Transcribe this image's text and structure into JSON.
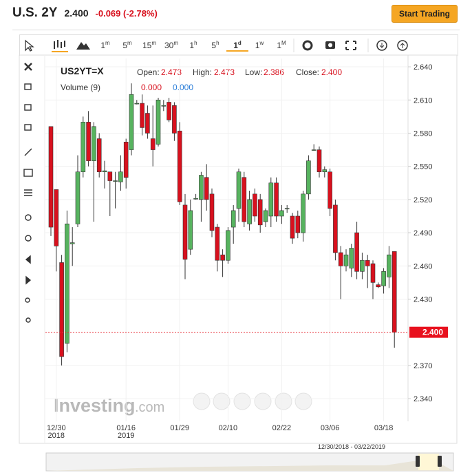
{
  "header": {
    "title": "U.S. 2Y",
    "price": "2.400",
    "change": "-0.069 (-2.78%)",
    "button": "Start Trading"
  },
  "toolbar": {
    "intervals": [
      {
        "n": "1",
        "unit": "m"
      },
      {
        "n": "5",
        "unit": "m"
      },
      {
        "n": "15",
        "unit": "m"
      },
      {
        "n": "30",
        "unit": "m"
      },
      {
        "n": "1",
        "unit": "h"
      },
      {
        "n": "5",
        "unit": "h"
      },
      {
        "n": "1",
        "unit": "d"
      },
      {
        "n": "1",
        "unit": "w"
      },
      {
        "n": "1",
        "unit": "M"
      }
    ],
    "active": 6
  },
  "legend": {
    "symbol": "US2YT=X",
    "open_label": "Open:",
    "open": "2.473",
    "high_label": "High:",
    "high": "2.473",
    "low_label": "Low:",
    "low": "2.386",
    "close_label": "Close:",
    "close": "2.400",
    "volume_label": "Volume (9)",
    "volume_a": "0.000",
    "volume_b": "0.000"
  },
  "watermark": {
    "brand": "Investing",
    "suffix": ".com"
  },
  "navigator": {
    "range": "12/30/2018 - 03/22/2019"
  },
  "chart_data": {
    "type": "candlestick",
    "categories": [
      null,
      "12/30",
      null,
      null,
      null,
      null,
      null,
      null,
      null,
      null,
      null,
      null,
      null,
      null,
      "01/16",
      null,
      null,
      null,
      null,
      null,
      null,
      null,
      null,
      null,
      "01/29",
      null,
      null,
      null,
      null,
      null,
      null,
      null,
      null,
      "02/10",
      null,
      null,
      null,
      null,
      null,
      null,
      null,
      null,
      null,
      "02/22",
      null,
      null,
      null,
      null,
      null,
      null,
      null,
      null,
      "03/06",
      null,
      null,
      null,
      null,
      null,
      null,
      null,
      null,
      null,
      "03/18",
      null,
      null
    ],
    "category_years": [
      null,
      "2018",
      null,
      null,
      null,
      null,
      null,
      null,
      null,
      null,
      null,
      null,
      null,
      null,
      "2019",
      null,
      null,
      null,
      null,
      null,
      null,
      null,
      null,
      null,
      null,
      null,
      null,
      null,
      null,
      null,
      null,
      null,
      null,
      null,
      null,
      null,
      null,
      null,
      null,
      null,
      null,
      null,
      null,
      null,
      null,
      null,
      null,
      null,
      null,
      null,
      null,
      null,
      null,
      null,
      null,
      null,
      null,
      null,
      null,
      null,
      null,
      null,
      null,
      null,
      null
    ],
    "open": [
      2.586,
      2.529,
      2.463,
      2.39,
      2.48,
      2.498,
      2.545,
      2.59,
      2.555,
      2.575,
      2.545,
      2.545,
      2.537,
      2.536,
      2.572,
      2.565,
      2.607,
      2.607,
      2.598,
      2.575,
      2.57,
      2.605,
      2.608,
      2.605,
      2.582,
      2.515,
      2.475,
      2.521,
      2.52,
      2.54,
      2.525,
      2.495,
      2.47,
      2.465,
      2.495,
      2.512,
      2.54,
      2.498,
      2.525,
      2.52,
      2.5,
      2.505,
      2.535,
      2.505,
      2.512,
      2.505,
      2.505,
      2.49,
      2.525,
      2.565,
      2.565,
      2.545,
      2.545,
      2.515,
      2.472,
      2.46,
      2.458,
      2.49,
      2.455,
      2.465,
      2.462,
      2.443,
      2.442,
      2.45,
      2.473
    ],
    "high": [
      2.586,
      2.529,
      2.47,
      2.51,
      2.495,
      2.56,
      2.595,
      2.6,
      2.59,
      2.58,
      2.555,
      2.545,
      2.545,
      2.56,
      2.575,
      2.625,
      2.61,
      2.615,
      2.605,
      2.605,
      2.612,
      2.61,
      2.612,
      2.608,
      2.59,
      2.525,
      2.52,
      2.525,
      2.545,
      2.552,
      2.53,
      2.498,
      2.475,
      2.495,
      2.515,
      2.548,
      2.545,
      2.528,
      2.53,
      2.525,
      2.512,
      2.54,
      2.54,
      2.515,
      2.515,
      2.508,
      2.51,
      2.528,
      2.56,
      2.57,
      2.568,
      2.55,
      2.548,
      2.52,
      2.478,
      2.475,
      2.48,
      2.5,
      2.472,
      2.47,
      2.465,
      2.445,
      2.458,
      2.478,
      2.473
    ],
    "low": [
      2.487,
      2.455,
      2.37,
      2.382,
      2.46,
      2.495,
      2.54,
      2.55,
      2.5,
      2.54,
      2.53,
      2.505,
      2.512,
      2.528,
      2.53,
      2.56,
      2.606,
      2.578,
      2.575,
      2.55,
      2.568,
      2.6,
      2.59,
      2.573,
      2.515,
      2.448,
      2.47,
      2.52,
      2.5,
      2.51,
      2.486,
      2.455,
      2.45,
      2.462,
      2.48,
      2.5,
      2.495,
      2.492,
      2.5,
      2.49,
      2.495,
      2.495,
      2.5,
      2.498,
      2.508,
      2.48,
      2.485,
      2.482,
      2.52,
      2.564,
      2.54,
      2.54,
      2.505,
      2.465,
      2.43,
      2.455,
      2.45,
      2.448,
      2.448,
      2.44,
      2.43,
      2.44,
      2.435,
      2.44,
      2.386
    ],
    "close": [
      2.495,
      2.478,
      2.378,
      2.498,
      2.481,
      2.545,
      2.59,
      2.555,
      2.586,
      2.545,
      2.546,
      2.537,
      2.537,
      2.545,
      2.54,
      2.615,
      2.607,
      2.585,
      2.58,
      2.565,
      2.61,
      2.605,
      2.592,
      2.58,
      2.518,
      2.466,
      2.51,
      2.521,
      2.542,
      2.52,
      2.492,
      2.465,
      2.465,
      2.492,
      2.51,
      2.545,
      2.5,
      2.52,
      2.505,
      2.497,
      2.51,
      2.535,
      2.505,
      2.51,
      2.512,
      2.485,
      2.49,
      2.525,
      2.555,
      2.565,
      2.545,
      2.547,
      2.512,
      2.472,
      2.46,
      2.47,
      2.476,
      2.455,
      2.465,
      2.46,
      2.445,
      2.441,
      2.455,
      2.47,
      2.4
    ],
    "up_color": "#57b35f",
    "down_color": "#d8111e",
    "last_price": {
      "value": 2.4,
      "label": "2.400"
    },
    "ylim": [
      2.3195,
      2.6475
    ],
    "yticks": [
      {
        "value": 2.64,
        "label": "2.640"
      },
      {
        "value": 2.61,
        "label": "2.610"
      },
      {
        "value": 2.58,
        "label": "2.580"
      },
      {
        "value": 2.55,
        "label": "2.550"
      },
      {
        "value": 2.52,
        "label": "2.520"
      },
      {
        "value": 2.49,
        "label": "2.490"
      },
      {
        "value": 2.46,
        "label": "2.460"
      },
      {
        "value": 2.43,
        "label": "2.430"
      },
      {
        "value": 2.37,
        "label": "2.370"
      },
      {
        "value": 2.34,
        "label": "2.340"
      }
    ],
    "grid": true
  }
}
